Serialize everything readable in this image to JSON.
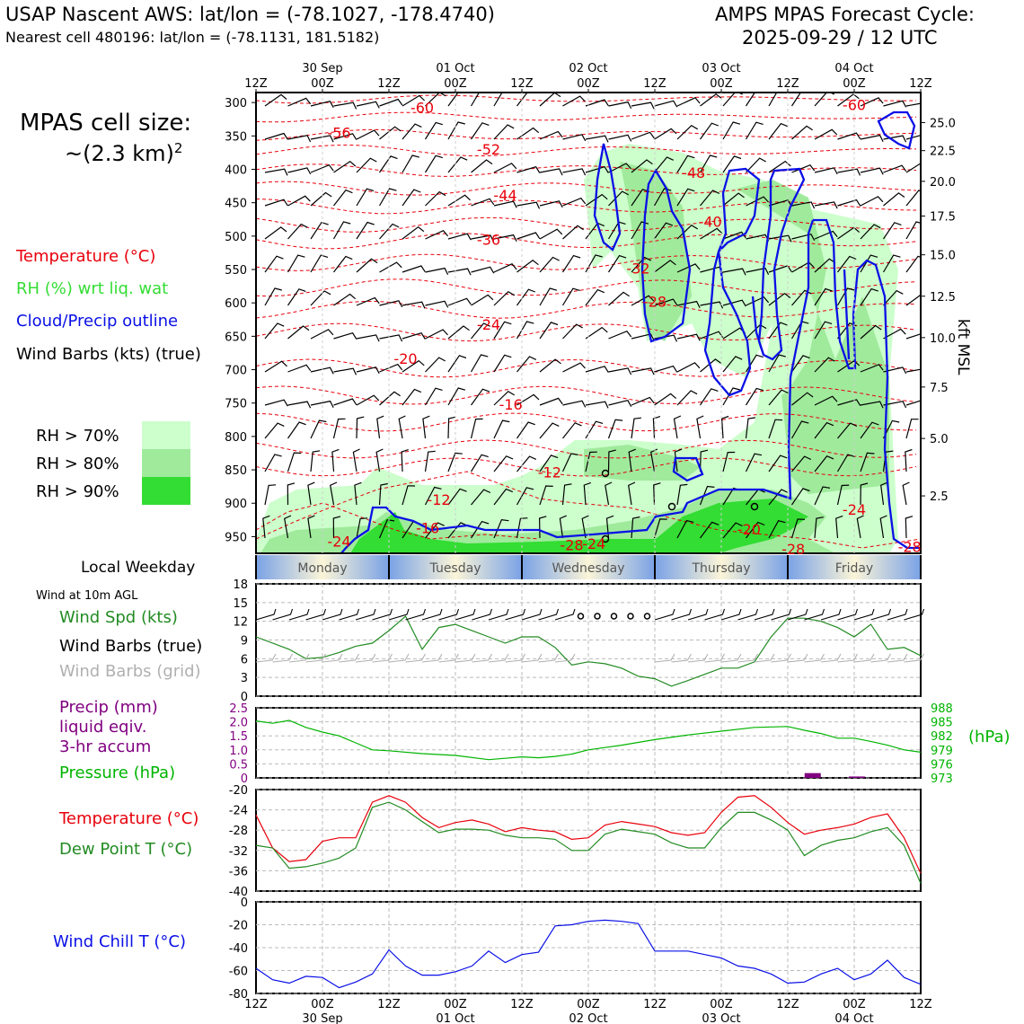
{
  "header": {
    "title_left": "USAP Nascent AWS: lat/lon = (-78.1027, -178.4740)",
    "subtitle_left": "Nearest cell 480196: lat/lon = (-78.1131, 181.5182)",
    "title_right": "AMPS MPAS Forecast Cycle:",
    "subtitle_right": "2025-09-29 / 12 UTC",
    "cell_size_label": "MPAS cell size:",
    "cell_size_value": "~(2.3 km)",
    "cell_size_exp": "2"
  },
  "legend": {
    "temperature": "Temperature (°C)",
    "rh": "RH (%) wrt liq. wat",
    "cloud": "Cloud/Precip outline",
    "barbs": "Wind Barbs (kts) (true)",
    "rh70": "RH > 70%",
    "rh80": "RH > 80%",
    "rh90": "RH > 90%",
    "colors": {
      "temp": "#e8000b",
      "rh": "#33dd33",
      "cloud": "#0a10e6",
      "rh70": "#ccffcc",
      "rh80": "#a0ea9c",
      "rh90": "#33dd33"
    }
  },
  "time_axis": {
    "top_hours": [
      "12Z",
      "00Z",
      "12Z",
      "00Z",
      "12Z",
      "00Z",
      "12Z",
      "00Z",
      "12Z",
      "00Z",
      "12Z"
    ],
    "dates": [
      "30 Sep",
      "01 Oct",
      "02 Oct",
      "03 Oct",
      "04 Oct"
    ],
    "weekday_label": "Local Weekday",
    "weekdays": [
      "Monday",
      "Tuesday",
      "Wednesday",
      "Thursday",
      "Friday"
    ]
  },
  "labels": {
    "wind_at": "Wind at 10m AGL",
    "wind_spd": "Wind Spd (kts)",
    "wind_barbs_true": "Wind Barbs (true)",
    "wind_barbs_grid": "Wind Barbs (grid)",
    "precip_1": "Precip (mm)",
    "precip_2": "liquid eqiv.",
    "precip_3": "3-hr accum",
    "pressure": "Pressure (hPa)",
    "hpa": "(hPa)",
    "temperature": "Temperature (°C)",
    "dewpoint": "Dew Point T (°C)",
    "windchill": "Wind Chill T (°C)",
    "kft": "kft MSL"
  },
  "chart_data": [
    {
      "type": "contour",
      "title": "",
      "ylabel_right": "kft MSL",
      "x_range_hours": [
        0,
        120
      ],
      "y_ticks_pressure": [
        300,
        350,
        400,
        450,
        500,
        550,
        600,
        650,
        700,
        750,
        800,
        850,
        900,
        950
      ],
      "y_ticks_kft": [
        {
          "p": 330,
          "label": "25.0"
        },
        {
          "p": 372,
          "label": "22.5"
        },
        {
          "p": 418,
          "label": "20.0"
        },
        {
          "p": 470,
          "label": "17.5"
        },
        {
          "p": 528,
          "label": "15.0"
        },
        {
          "p": 590,
          "label": "12.5"
        },
        {
          "p": 652,
          "label": "10.0"
        },
        {
          "p": 726,
          "label": "7.5"
        },
        {
          "p": 803,
          "label": "5.0"
        },
        {
          "p": 889,
          "label": "2.5"
        }
      ],
      "temperature_contour_labels": [
        {
          "h": 30,
          "p": 307,
          "v": "-60"
        },
        {
          "h": 108,
          "p": 303,
          "v": "-60"
        },
        {
          "h": 15,
          "p": 345,
          "v": "-56"
        },
        {
          "h": 42,
          "p": 370,
          "v": "-52"
        },
        {
          "h": 79,
          "p": 405,
          "v": "-48"
        },
        {
          "h": 45,
          "p": 438,
          "v": "-44"
        },
        {
          "h": 82,
          "p": 478,
          "v": "-40"
        },
        {
          "h": 42,
          "p": 505,
          "v": "-36"
        },
        {
          "h": 69,
          "p": 548,
          "v": "-32"
        },
        {
          "h": 72,
          "p": 598,
          "v": "-28"
        },
        {
          "h": 42,
          "p": 632,
          "v": "-24"
        },
        {
          "h": 27,
          "p": 683,
          "v": "-20"
        },
        {
          "h": 46,
          "p": 752,
          "v": "-16"
        },
        {
          "h": 53,
          "p": 853,
          "v": "-12"
        },
        {
          "h": 33,
          "p": 894,
          "v": "-12"
        },
        {
          "h": 31,
          "p": 937,
          "v": "-16"
        },
        {
          "h": 15,
          "p": 957,
          "v": "-24"
        },
        {
          "h": 57,
          "p": 962,
          "v": "-28"
        },
        {
          "h": 61,
          "p": 960,
          "v": "-24"
        },
        {
          "h": 89,
          "p": 939,
          "v": "-20"
        },
        {
          "h": 97,
          "p": 968,
          "v": "-28"
        },
        {
          "h": 108,
          "p": 909,
          "v": "-24"
        },
        {
          "h": 118,
          "p": 965,
          "v": "-28"
        }
      ]
    },
    {
      "type": "line",
      "title": "Wind Spd (kts)",
      "ylim": [
        0,
        18
      ],
      "yticks": [
        0,
        3,
        6,
        9,
        12,
        15,
        18
      ],
      "x_hours": [
        0,
        6,
        9,
        12,
        15,
        18,
        21,
        24,
        27,
        30,
        33,
        36,
        39,
        42,
        45,
        48,
        51,
        54,
        57,
        60,
        63,
        66,
        69,
        72,
        75,
        78,
        81,
        84,
        87,
        90,
        93,
        96,
        99,
        102,
        105,
        108,
        111,
        114,
        117,
        120
      ],
      "values": [
        9.5,
        7.5,
        6,
        6.2,
        7,
        8,
        8.5,
        10.5,
        12.8,
        7.5,
        11,
        11.5,
        10.5,
        9.5,
        8.5,
        9.5,
        9.5,
        7.8,
        5,
        5.5,
        5.2,
        4.5,
        3.2,
        2.8,
        1.6,
        2.5,
        3.5,
        4.5,
        4.5,
        5.5,
        9.5,
        12.5,
        12.5,
        12,
        11,
        9.5,
        11.5,
        7.5,
        7.8,
        6.5
      ],
      "color": "#228b22"
    },
    {
      "type": "line",
      "title": "Pressure (hPa)",
      "ylim_precip": [
        0,
        2.5
      ],
      "yticks_precip": [
        "0",
        "0.5",
        "1.0",
        "1.5",
        "2.0",
        "2.5"
      ],
      "ylim_pressure": [
        973,
        988
      ],
      "yticks_pressure": [
        "973",
        "976",
        "979",
        "982",
        "985",
        "988"
      ],
      "x_hours": [
        0,
        3,
        6,
        9,
        12,
        15,
        18,
        21,
        24,
        30,
        36,
        42,
        45,
        48,
        51,
        54,
        57,
        60,
        63,
        66,
        69,
        72,
        78,
        84,
        90,
        96,
        99,
        102,
        105,
        108,
        111,
        114,
        117,
        120
      ],
      "pressure": [
        985.2,
        984.7,
        985.3,
        983.8,
        982.8,
        982.0,
        980.5,
        979.0,
        978.8,
        978.2,
        977.8,
        976.9,
        977.2,
        977.5,
        977.3,
        977.6,
        978.1,
        979.0,
        979.5,
        980.0,
        980.6,
        981.2,
        982.2,
        983.0,
        983.8,
        984.0,
        983.2,
        982.5,
        981.5,
        981.5,
        980.8,
        980.0,
        979.0,
        978.5
      ],
      "precip_bars": [
        {
          "h": 100.5,
          "v": 0.17
        },
        {
          "h": 108.5,
          "v": 0.05
        }
      ],
      "colors": {
        "pressure": "#00b400",
        "precip": "#800080"
      }
    },
    {
      "type": "line",
      "title": "Temperature (°C)",
      "ylim": [
        -40,
        -20
      ],
      "yticks": [
        "-20",
        "-24",
        "-28",
        "-32",
        "-36",
        "-40"
      ],
      "x_hours": [
        0,
        3,
        6,
        9,
        12,
        15,
        18,
        21,
        24,
        27,
        30,
        33,
        36,
        39,
        42,
        45,
        48,
        51,
        54,
        57,
        60,
        63,
        66,
        69,
        72,
        75,
        78,
        81,
        84,
        87,
        90,
        93,
        96,
        99,
        102,
        105,
        108,
        111,
        114,
        117,
        120
      ],
      "series": [
        {
          "name": "Temperature (°C)",
          "values": [
            -25,
            -31.5,
            -34.2,
            -33.8,
            -30.2,
            -29.5,
            -29.5,
            -22.5,
            -21.2,
            -22.5,
            -25.5,
            -27.5,
            -26.5,
            -26.0,
            -26.8,
            -28.3,
            -27.5,
            -28.0,
            -28.3,
            -29.8,
            -29.5,
            -27.0,
            -26.3,
            -26.8,
            -27.3,
            -28.5,
            -29.0,
            -28.5,
            -24.5,
            -21.5,
            -21.2,
            -23.5,
            -26.5,
            -28.8,
            -28.0,
            -27.5,
            -26.8,
            -25.5,
            -24.8,
            -29.5,
            -36.5
          ],
          "color": "#e8000b"
        },
        {
          "name": "Dew Point T (°C)",
          "values": [
            -31,
            -31.5,
            -35.5,
            -35.2,
            -34.5,
            -33.5,
            -31.5,
            -23.5,
            -22.5,
            -24.0,
            -26.3,
            -28.5,
            -27.8,
            -27.8,
            -28.0,
            -29.0,
            -29.5,
            -29.5,
            -29.8,
            -32.0,
            -32.0,
            -28.8,
            -27.8,
            -28.3,
            -28.8,
            -30.5,
            -31.5,
            -31.5,
            -27.5,
            -24.5,
            -24.5,
            -26.0,
            -28.0,
            -33.0,
            -31.0,
            -30.0,
            -29.5,
            -28.3,
            -27.5,
            -31.0,
            -38.5
          ],
          "color": "#228b22"
        }
      ]
    },
    {
      "type": "line",
      "title": "Wind Chill T (°C)",
      "ylim": [
        -80,
        0
      ],
      "yticks": [
        "0",
        "-20",
        "-40",
        "-60",
        "-80"
      ],
      "x_hours": [
        0,
        3,
        6,
        9,
        12,
        15,
        18,
        21,
        24,
        27,
        30,
        33,
        36,
        39,
        42,
        45,
        48,
        51,
        54,
        57,
        60,
        63,
        66,
        69,
        72,
        75,
        78,
        81,
        84,
        87,
        90,
        93,
        96,
        99,
        102,
        105,
        108,
        111,
        114,
        117,
        120
      ],
      "values": [
        -58,
        -68,
        -71,
        -65,
        -66,
        -75,
        -70,
        -63,
        -42,
        -56,
        -64,
        -64,
        -61,
        -56,
        -43,
        -53,
        -46,
        -44,
        -21,
        -20,
        -17,
        -16,
        -17,
        -19,
        -43,
        -43,
        -43,
        -46,
        -49,
        -56,
        -58,
        -63,
        -71,
        -70,
        -63,
        -58,
        -68,
        -63,
        -51,
        -66,
        -72
      ],
      "color": "#0a10e6"
    }
  ]
}
